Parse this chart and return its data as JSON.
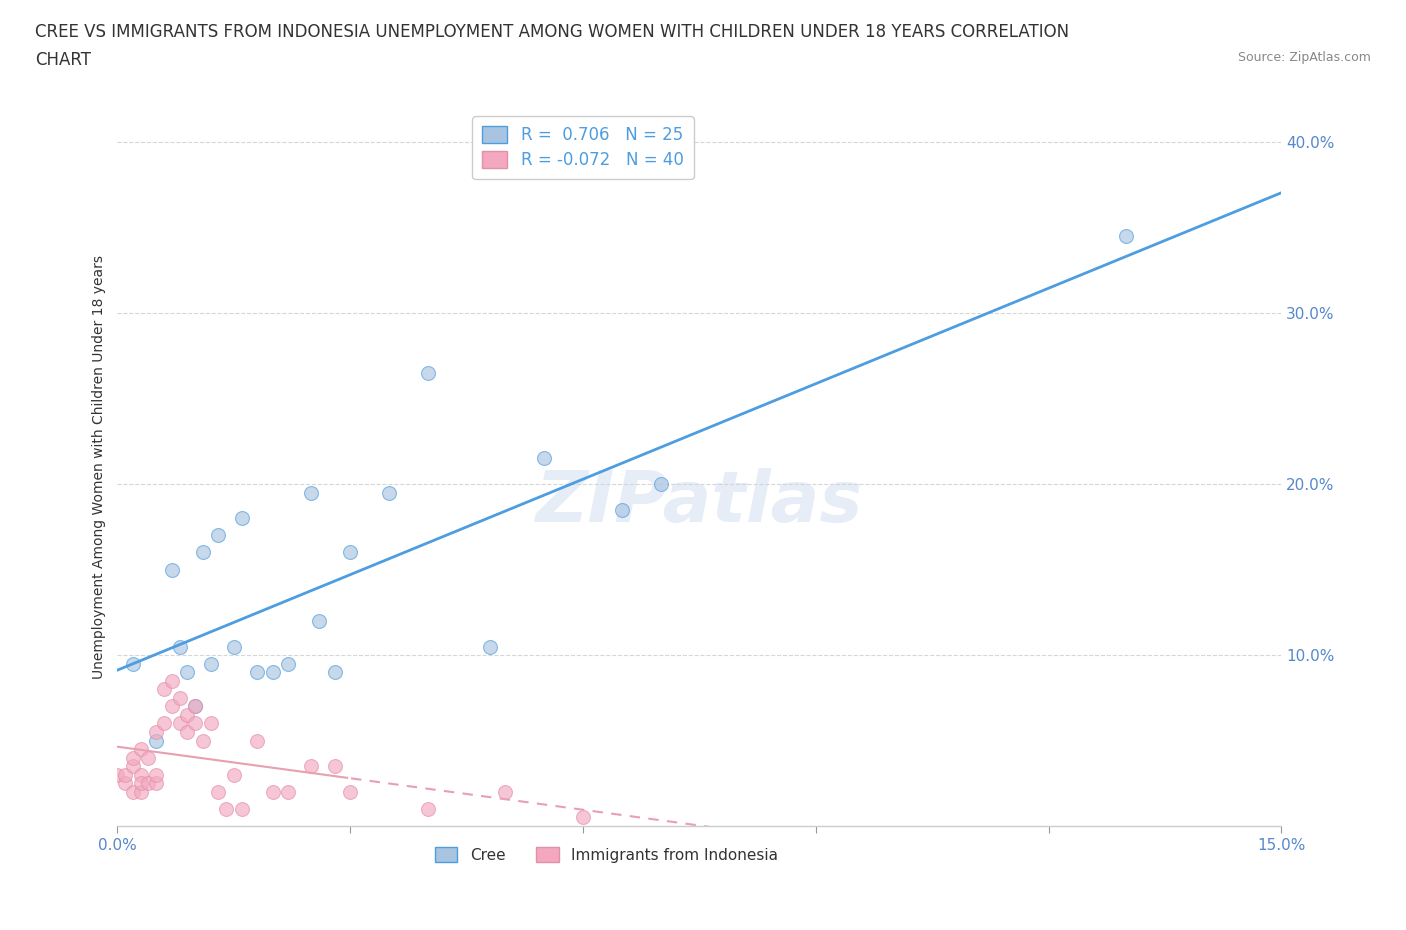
{
  "title_line1": "CREE VS IMMIGRANTS FROM INDONESIA UNEMPLOYMENT AMONG WOMEN WITH CHILDREN UNDER 18 YEARS CORRELATION",
  "title_line2": "CHART",
  "source": "Source: ZipAtlas.com",
  "ylabel": "Unemployment Among Women with Children Under 18 years",
  "xlim": [
    0.0,
    0.15
  ],
  "ylim": [
    0.0,
    0.42
  ],
  "xticks": [
    0.0,
    0.03,
    0.06,
    0.09,
    0.12,
    0.15
  ],
  "xtick_labels_show": [
    "0.0%",
    "",
    "",
    "",
    "",
    "15.0%"
  ],
  "yticks": [
    0.1,
    0.2,
    0.3,
    0.4
  ],
  "ytick_labels": [
    "10.0%",
    "20.0%",
    "30.0%",
    "40.0%"
  ],
  "legend_entries": [
    {
      "label": "R =  0.706   N = 25",
      "color": "#a8c4e0"
    },
    {
      "label": "R = -0.072   N = 40",
      "color": "#f4a8c0"
    }
  ],
  "legend_labels_bottom": [
    "Cree",
    "Immigrants from Indonesia"
  ],
  "watermark": "ZIPatlas",
  "blue_scatter_x": [
    0.002,
    0.005,
    0.007,
    0.008,
    0.009,
    0.01,
    0.011,
    0.012,
    0.013,
    0.015,
    0.016,
    0.018,
    0.02,
    0.022,
    0.025,
    0.026,
    0.028,
    0.03,
    0.035,
    0.04,
    0.048,
    0.055,
    0.065,
    0.07,
    0.13
  ],
  "blue_scatter_y": [
    0.095,
    0.05,
    0.15,
    0.105,
    0.09,
    0.07,
    0.16,
    0.095,
    0.17,
    0.105,
    0.18,
    0.09,
    0.09,
    0.095,
    0.195,
    0.12,
    0.09,
    0.16,
    0.195,
    0.265,
    0.105,
    0.215,
    0.185,
    0.2,
    0.345
  ],
  "pink_scatter_x": [
    0.0,
    0.001,
    0.001,
    0.002,
    0.002,
    0.002,
    0.003,
    0.003,
    0.003,
    0.003,
    0.004,
    0.004,
    0.005,
    0.005,
    0.005,
    0.006,
    0.006,
    0.007,
    0.007,
    0.008,
    0.008,
    0.009,
    0.009,
    0.01,
    0.01,
    0.011,
    0.012,
    0.013,
    0.014,
    0.015,
    0.016,
    0.018,
    0.02,
    0.022,
    0.025,
    0.028,
    0.03,
    0.04,
    0.05,
    0.06
  ],
  "pink_scatter_y": [
    0.03,
    0.025,
    0.03,
    0.02,
    0.035,
    0.04,
    0.03,
    0.02,
    0.025,
    0.045,
    0.025,
    0.04,
    0.025,
    0.03,
    0.055,
    0.06,
    0.08,
    0.07,
    0.085,
    0.075,
    0.06,
    0.065,
    0.055,
    0.07,
    0.06,
    0.05,
    0.06,
    0.02,
    0.01,
    0.03,
    0.01,
    0.05,
    0.02,
    0.02,
    0.035,
    0.035,
    0.02,
    0.01,
    0.02,
    0.005
  ],
  "blue_line_color": "#4d9de0",
  "pink_line_color": "#e8a0b0",
  "grid_color": "#cccccc",
  "background_color": "#ffffff",
  "scatter_alpha": 0.65,
  "scatter_size": 100,
  "cree_color": "#a8c4e0",
  "indonesia_color": "#f4a8c0",
  "tick_color": "#5588cc",
  "axis_label_color": "#333333",
  "title_color": "#333333",
  "source_color": "#888888"
}
